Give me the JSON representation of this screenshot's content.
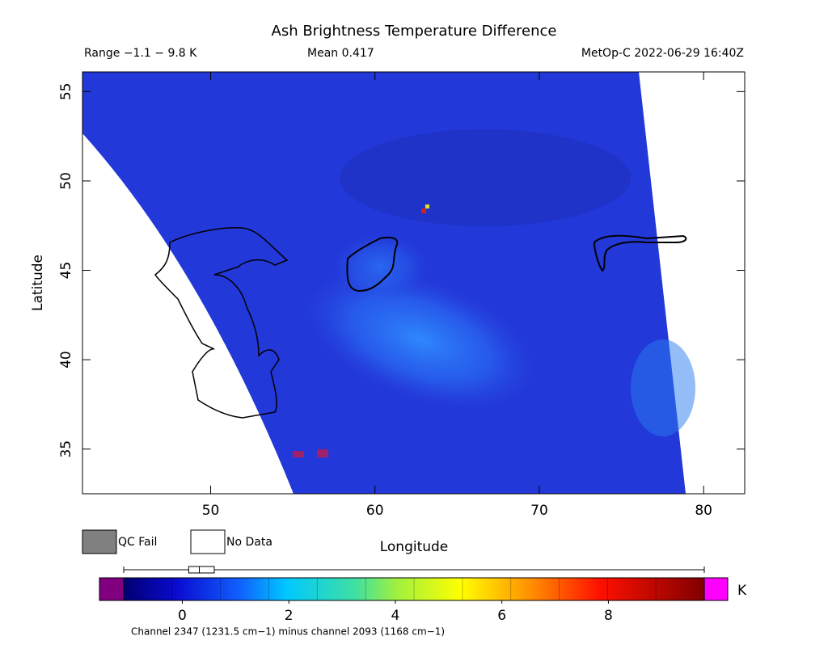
{
  "chart_data": {
    "type": "map",
    "title": "Ash Brightness Temperature Difference",
    "range_text": "Range −1.1 − 9.8 K",
    "mean_text": "Mean 0.417",
    "source_text": "MetOp-C 2022-06-29 16:40Z",
    "xlabel": "Longitude",
    "ylabel": "Latitude",
    "xlim": [
      42.2,
      82.5
    ],
    "xticks": [
      50,
      60,
      70,
      80
    ],
    "ylim": [
      32.5,
      56.1
    ],
    "yticks": [
      35,
      40,
      45,
      50,
      55
    ],
    "legend": [
      {
        "label": "QC Fail",
        "color": "#808080"
      },
      {
        "label": "No Data",
        "color": "#ffffff"
      }
    ],
    "colorbar": {
      "unit": "K",
      "lim": [
        -1.1,
        9.8
      ],
      "ticks": [
        0,
        2,
        4,
        6,
        8
      ],
      "under_color": "#800080",
      "over_color": "#ff00ff",
      "caption": "Channel 2347 (1231.5 cm−1) minus channel 2093 (1168 cm−1)"
    },
    "distribution": {
      "min": -1.1,
      "q1": 0.12,
      "median": 0.32,
      "q3": 0.6,
      "max": 9.8
    }
  }
}
